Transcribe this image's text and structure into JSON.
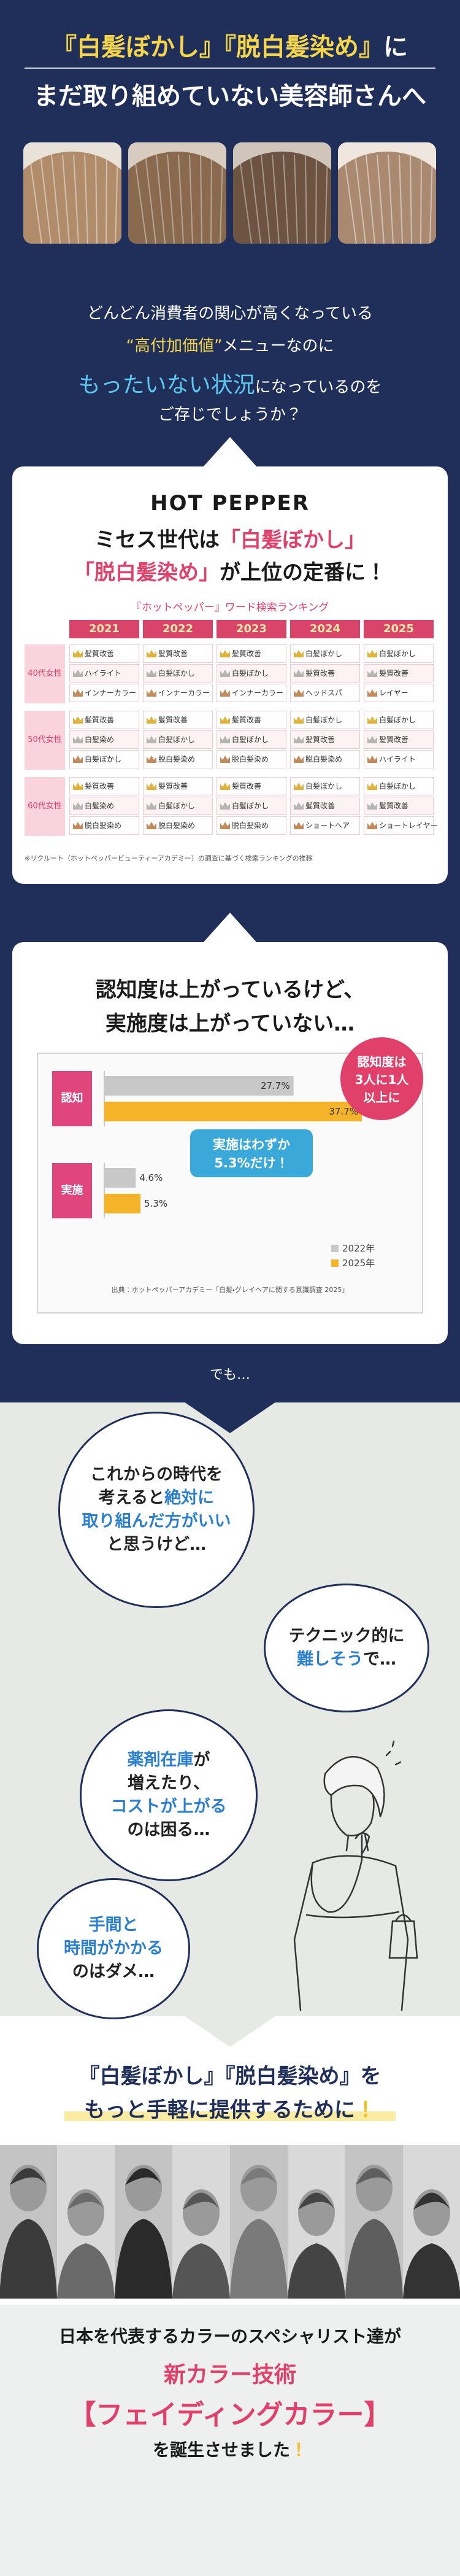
{
  "header": {
    "title_line1": [
      {
        "text": "『白髪ぼかし』『脱白髪染め』",
        "color": "#f5d54a"
      },
      {
        "text": "に",
        "color": "#ffffff"
      }
    ],
    "title_line2": "まだ取り組めていない美容師さんへ"
  },
  "intro": {
    "lines": [
      [
        {
          "text": "どんどん消費者の関心が高くなっている"
        }
      ],
      [
        {
          "text": "“高付加価値”",
          "color": "#f5d54a"
        },
        {
          "text": "メニューなのに"
        }
      ],
      [
        {
          "text": "もったいない状況",
          "color": "#5cc8f0",
          "big": true
        },
        {
          "text": "になっているのを"
        }
      ],
      [
        {
          "text": "ご存じでしょうか？"
        }
      ]
    ]
  },
  "ranking_card": {
    "brand": "HOT PEPPER",
    "heading_line1": [
      {
        "text": "ミセス世代は"
      },
      {
        "text": "「白髪ぼかし」",
        "color": "#e0406a"
      }
    ],
    "heading_line2": [
      {
        "text": "「脱白髪染め」",
        "color": "#e0406a"
      },
      {
        "text": "が上位の定番に！"
      }
    ],
    "table_title": "『ホットペッパー』ワード検索ランキング",
    "years": [
      "2021",
      "2022",
      "2023",
      "2024",
      "2025"
    ],
    "groups": [
      {
        "label": "40代女性",
        "columns": [
          [
            "髪質改善",
            "ハイライト",
            "インナーカラー"
          ],
          [
            "髪質改善",
            "白髪ぼかし",
            "インナーカラー"
          ],
          [
            "髪質改善",
            "白髪ぼかし",
            "インナーカラー"
          ],
          [
            "白髪ぼかし",
            "髪質改善",
            "ヘッドスパ"
          ],
          [
            "白髪ぼかし",
            "髪質改善",
            "レイヤー"
          ]
        ]
      },
      {
        "label": "50代女性",
        "columns": [
          [
            "髪質改善",
            "白髪染め",
            "白髪ぼかし"
          ],
          [
            "髪質改善",
            "白髪ぼかし",
            "脱白髪染め"
          ],
          [
            "髪質改善",
            "白髪ぼかし",
            "脱白髪染め"
          ],
          [
            "白髪ぼかし",
            "髪質改善",
            "脱白髪染め"
          ],
          [
            "白髪ぼかし",
            "髪質改善",
            "ハイライト"
          ]
        ]
      },
      {
        "label": "60代女性",
        "columns": [
          [
            "髪質改善",
            "白髪染め",
            "脱白髪染め"
          ],
          [
            "髪質改善",
            "白髪ぼかし",
            "脱白髪染め"
          ],
          [
            "髪質改善",
            "白髪ぼかし",
            "脱白髪染め"
          ],
          [
            "白髪ぼかし",
            "髪質改善",
            "ショートヘア"
          ],
          [
            "白髪ぼかし",
            "髪質改善",
            "ショートレイヤー"
          ]
        ]
      }
    ],
    "note": "※リクルート（ホットペッパービューティーアカデミー）の調査に基づく検索ランキングの推移"
  },
  "awareness_card": {
    "heading_line1": "認知度は上がっているけど、",
    "heading_line2": "実施度は上がっていない…",
    "chart": {
      "type": "bar",
      "orientation": "horizontal",
      "categories": [
        "認知",
        "実施"
      ],
      "category_color": "#e0457b",
      "series": [
        {
          "name": "2022年",
          "color": "#c8c8c8",
          "values": [
            27.7,
            4.6
          ],
          "value_labels": [
            "27.7%",
            "4.6%"
          ]
        },
        {
          "name": "2025年",
          "color": "#f5b32a",
          "values": [
            37.7,
            5.3
          ],
          "value_labels": [
            "37.7%",
            "5.3%"
          ]
        }
      ],
      "source": "出典：ホットペッパーアカデミー「白髪・グレイヘアに関する意識調査 2025」"
    },
    "callout_awareness": [
      "認知度は",
      "3人に1人",
      "以上に"
    ],
    "callout_practice": [
      "実施はわずか",
      "5.3%だけ！"
    ]
  },
  "transition": "でも…",
  "worries": [
    {
      "lines": [
        [
          {
            "text": "これからの時代を"
          }
        ],
        [
          {
            "text": "考えると"
          },
          {
            "text": "絶対に",
            "color": "#2a7fd0"
          }
        ],
        [
          {
            "text": "取り組んだ方がいい",
            "color": "#2a7fd0"
          }
        ],
        [
          {
            "text": "と思うけど…"
          }
        ]
      ]
    },
    {
      "lines": [
        [
          {
            "text": "テクニック的に"
          }
        ],
        [
          {
            "text": "難しそう",
            "color": "#2a7fd0"
          },
          {
            "text": "で…"
          }
        ]
      ]
    },
    {
      "lines": [
        [
          {
            "text": "薬剤在庫",
            "color": "#2a7fd0"
          },
          {
            "text": "が"
          }
        ],
        [
          {
            "text": "増えたり、"
          }
        ],
        [
          {
            "text": "コストが上がる",
            "color": "#2a7fd0"
          }
        ],
        [
          {
            "text": "のは困る…"
          }
        ]
      ]
    },
    {
      "lines": [
        [
          {
            "text": "手間と",
            "color": "#2a7fd0"
          }
        ],
        [
          {
            "text": "時間がかかる",
            "color": "#2a7fd0"
          }
        ],
        [
          {
            "text": "のはダメ…"
          }
        ]
      ]
    }
  ],
  "solution": {
    "line1": "『白髪ぼかし』『脱白髪染め』を",
    "line2": [
      {
        "text": "もっと手軽に提供するために"
      },
      {
        "text": "！",
        "color": "#f5c01a"
      }
    ]
  },
  "closing": {
    "line1": "日本を代表するカラーのスペシャリスト達が",
    "line2": "新カラー技術",
    "line3": "【フェイディングカラー】",
    "line4": [
      {
        "text": "を誕生させました"
      },
      {
        "text": "！",
        "color": "#f5c01a"
      }
    ]
  }
}
